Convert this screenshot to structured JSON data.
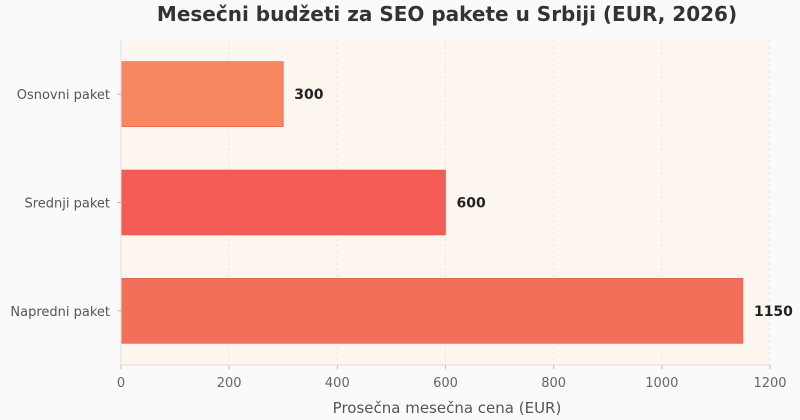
{
  "chart_data": {
    "type": "bar",
    "orientation": "horizontal",
    "title": "Mesečni budžeti za SEO pakete u Srbiji (EUR, 2026)",
    "xlabel": "Prosečna mesečna cena (EUR)",
    "ylabel": "",
    "categories": [
      "Osnovni paket",
      "Srednji paket",
      "Napredni paket"
    ],
    "values": [
      300,
      600,
      1150
    ],
    "value_labels": [
      "300",
      "600",
      "1150"
    ],
    "colors": [
      "#f6875e",
      "#f25c54",
      "#f27059"
    ],
    "xlim": [
      0,
      1200
    ],
    "xticks": [
      0,
      200,
      400,
      600,
      800,
      1000,
      1200
    ],
    "xtick_labels": [
      "0",
      "200",
      "400",
      "600",
      "800",
      "1000",
      "1200"
    ],
    "grid": true,
    "legend": "none",
    "plot_background": "#fdf6ee",
    "page_background": "#fafafa"
  }
}
